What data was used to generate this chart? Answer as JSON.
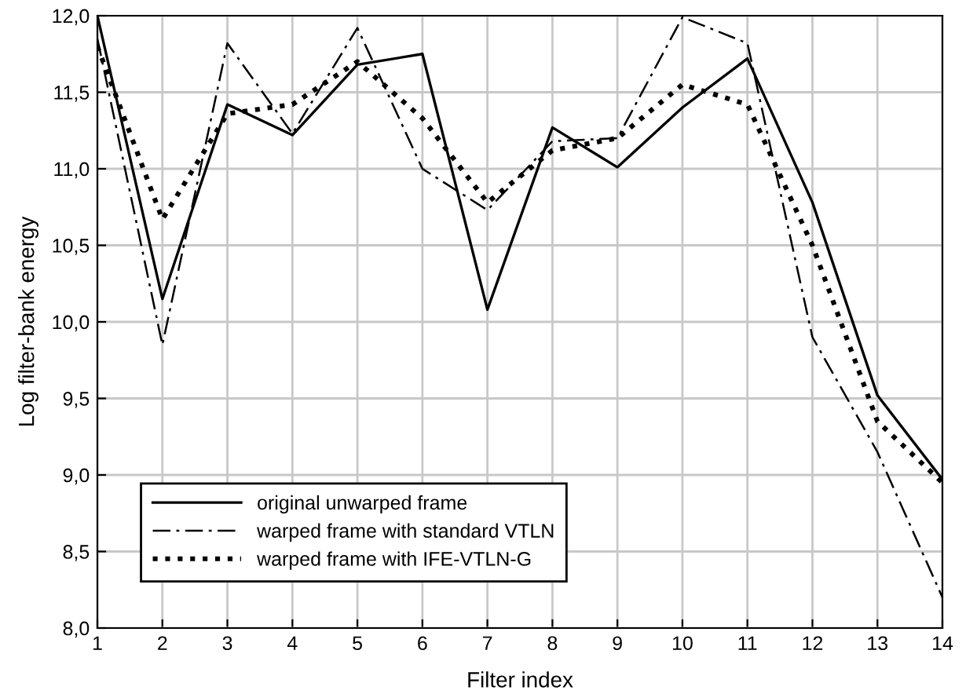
{
  "chart_data": {
    "type": "line",
    "xlabel": "Filter index",
    "ylabel": "Log filter-bank energy",
    "x": [
      1,
      2,
      3,
      4,
      5,
      6,
      7,
      8,
      9,
      10,
      11,
      12,
      13,
      14
    ],
    "series": [
      {
        "name": "original unwarped frame",
        "color": "#000000",
        "line_style": "solid",
        "values": [
          12.0,
          10.15,
          11.42,
          11.22,
          11.68,
          11.75,
          10.08,
          11.27,
          11.01,
          11.4,
          11.72,
          10.78,
          9.52,
          8.97
        ]
      },
      {
        "name": "warped frame with standard VTLN",
        "color": "#000000",
        "line_style": "dashdot",
        "values": [
          11.85,
          9.85,
          11.82,
          11.23,
          11.92,
          11.0,
          10.73,
          11.18,
          11.2,
          11.99,
          11.82,
          9.9,
          9.15,
          8.2
        ]
      },
      {
        "name": "warped frame with IFE-VTLN-G",
        "color": "#000000",
        "line_style": "dotted",
        "values": [
          11.8,
          10.67,
          11.36,
          11.42,
          11.7,
          11.33,
          10.78,
          11.12,
          11.2,
          11.55,
          11.42,
          10.5,
          9.35,
          8.95
        ]
      }
    ],
    "xlim": [
      1,
      14
    ],
    "xticks": [
      1,
      2,
      3,
      4,
      5,
      6,
      7,
      8,
      9,
      10,
      11,
      12,
      13,
      14
    ],
    "ylim": [
      8.0,
      12.0
    ],
    "yticks": [
      {
        "value": 8.0,
        "label": "8,0"
      },
      {
        "value": 8.5,
        "label": "8,5"
      },
      {
        "value": 9.0,
        "label": "9,0"
      },
      {
        "value": 9.5,
        "label": "9,5"
      },
      {
        "value": 10.0,
        "label": "10,0"
      },
      {
        "value": 10.5,
        "label": "10,5"
      },
      {
        "value": 11.0,
        "label": "11,0"
      },
      {
        "value": 11.5,
        "label": "11,5"
      },
      {
        "value": 12.0,
        "label": "12,0"
      }
    ],
    "grid": true,
    "legend": "bottom left",
    "marker": "none"
  }
}
